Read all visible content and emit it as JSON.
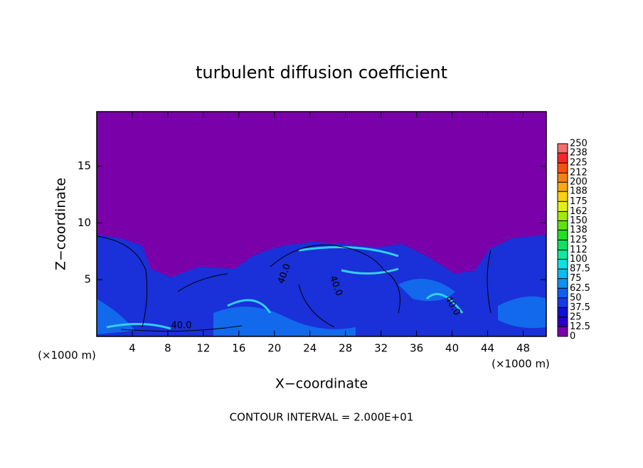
{
  "chart_data": {
    "type": "contour",
    "title": "turbulent diffusion coefficient",
    "xlabel": "X−coordinate",
    "ylabel": "Z−coordinate",
    "x_unit": "(×1000 m)",
    "footer": "CONTOUR INTERVAL = 2.000E+01",
    "xlim": [
      0,
      50.6
    ],
    "xticks": [
      4,
      8,
      12,
      16,
      20,
      24,
      28,
      32,
      36,
      40,
      44,
      48
    ],
    "ylim": [
      0,
      19.8
    ],
    "yticks": [
      5,
      10,
      15
    ],
    "contour_labels": [
      "40.0",
      "40.0",
      "40.0",
      "40.0"
    ],
    "colorbar": {
      "levels": [
        0,
        12.5,
        25,
        37.5,
        50,
        62.5,
        75,
        87.5,
        100,
        112,
        125,
        138,
        150,
        162,
        175,
        188,
        200,
        212,
        225,
        238,
        250
      ],
      "colors": [
        "#7a00aa",
        "#2a00b8",
        "#1010d0",
        "#1838e8",
        "#1060f0",
        "#1090f0",
        "#10b8f0",
        "#10e0e0",
        "#10e8a0",
        "#10e060",
        "#20e020",
        "#60e010",
        "#a0e810",
        "#e0f010",
        "#f8d010",
        "#f8a810",
        "#f88010",
        "#f85010",
        "#f82828",
        "#f07070"
      ]
    }
  }
}
